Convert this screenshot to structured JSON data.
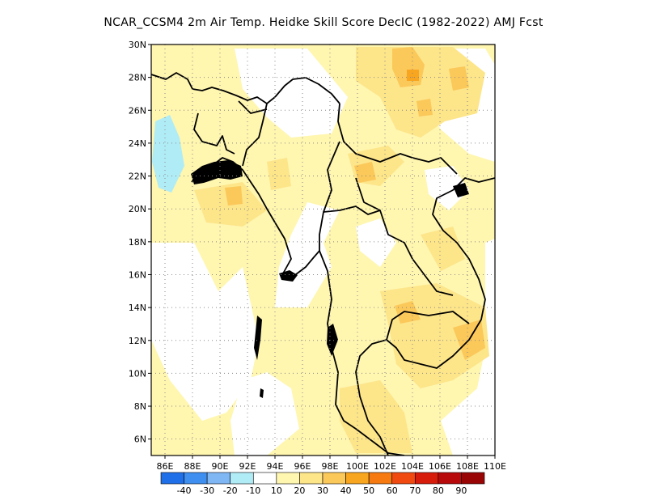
{
  "title": "NCAR_CCSM4  2m Air Temp. Heidke Skill Score DecIC (1982-2022) AMJ Fcst",
  "map": {
    "lon_range": [
      85,
      110
    ],
    "lat_range": [
      5,
      30
    ],
    "lon_ticks": [
      "86E",
      "88E",
      "90E",
      "92E",
      "94E",
      "96E",
      "98E",
      "100E",
      "102E",
      "104E",
      "106E",
      "108E",
      "110E"
    ],
    "lat_ticks": [
      "30N",
      "28N",
      "26N",
      "24N",
      "22N",
      "20N",
      "18N",
      "16N",
      "14N",
      "12N",
      "10N",
      "8N",
      "6N"
    ],
    "grid": "dotted",
    "land_outline_color": "#000000"
  },
  "colorbar": {
    "colors": [
      "#1f6fe8",
      "#3f8ff0",
      "#7fb7f5",
      "#b0ecf6",
      "#ffffff",
      "#fff6b0",
      "#fde58a",
      "#fbc85a",
      "#f8a520",
      "#f77a10",
      "#f04a10",
      "#d81c0c",
      "#b80a0a",
      "#990505"
    ],
    "labels": [
      "-40",
      "-30",
      "-20",
      "-10",
      "10",
      "20",
      "30",
      "40",
      "50",
      "60",
      "70",
      "80",
      "90"
    ]
  }
}
